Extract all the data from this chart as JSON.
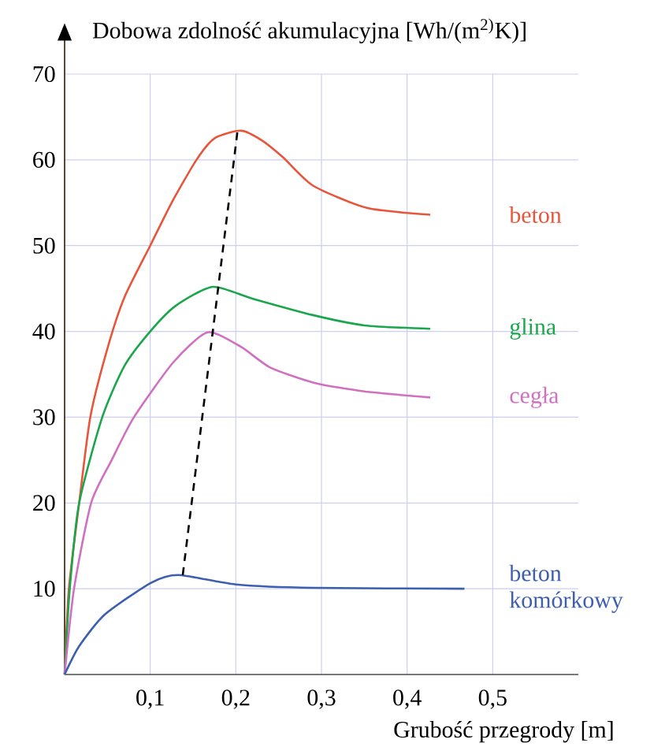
{
  "chart_data": {
    "type": "line",
    "xlabel": "Grubość przegrody [m]",
    "ylabel": "Dobowa zdolność akumulacyjna [Wh/(m$^{2)}$K)]",
    "xlim": [
      0,
      0.6
    ],
    "ylim": [
      0,
      70
    ],
    "xticks": [
      {
        "value": 0.1,
        "label": "0,1"
      },
      {
        "value": 0.2,
        "label": "0,2"
      },
      {
        "value": 0.3,
        "label": "0,3"
      },
      {
        "value": 0.4,
        "label": "0,4"
      },
      {
        "value": 0.5,
        "label": "0,5"
      }
    ],
    "yticks": [
      10,
      20,
      30,
      40,
      50,
      60,
      70
    ],
    "grid": true,
    "series": [
      {
        "name": "beton",
        "color": "#e8553a",
        "x": [
          0,
          0.005,
          0.017,
          0.03,
          0.05,
          0.07,
          0.1,
          0.125,
          0.154,
          0.175,
          0.206,
          0.23,
          0.255,
          0.29,
          0.353,
          0.427
        ],
        "values": [
          0,
          10,
          20,
          30,
          38,
          44,
          50,
          55,
          60,
          62.5,
          63.4,
          62.3,
          60.3,
          57,
          54.4,
          53.6
        ]
      },
      {
        "name": "glina",
        "color": "#1aa64a",
        "x": [
          0,
          0.006,
          0.017,
          0.044,
          0.07,
          0.1,
          0.13,
          0.173,
          0.22,
          0.29,
          0.35,
          0.427
        ],
        "values": [
          0,
          10,
          20,
          30,
          36,
          40,
          43,
          45.2,
          43.8,
          41.9,
          40.7,
          40.3
        ]
      },
      {
        "name": "cegła",
        "color": "#d070c0",
        "x": [
          0,
          0.011,
          0.031,
          0.055,
          0.081,
          0.127,
          0.167,
          0.206,
          0.24,
          0.292,
          0.35,
          0.427
        ],
        "values": [
          0,
          10,
          20,
          25,
          30,
          36.4,
          39.9,
          38.2,
          35.8,
          34,
          33,
          32.3
        ]
      },
      {
        "name": "beton komórkowy",
        "color": "#3d5fb0",
        "x": [
          0,
          0.017,
          0.047,
          0.101,
          0.133,
          0.2,
          0.292,
          0.467
        ],
        "values": [
          0,
          3.3,
          7,
          10.7,
          11.6,
          10.5,
          10.1,
          10
        ]
      },
      {
        "color": "#000000",
        "line_style": "dashed",
        "x": [
          0.138,
          0.202
        ],
        "values": [
          11.6,
          63.4
        ]
      }
    ]
  }
}
